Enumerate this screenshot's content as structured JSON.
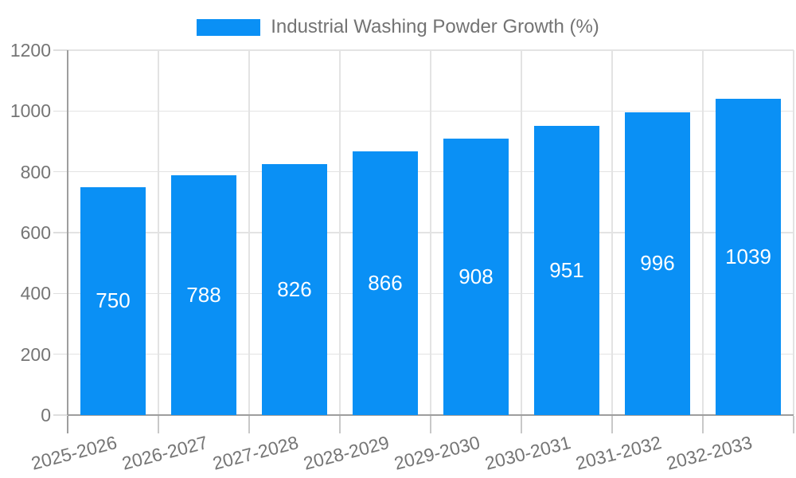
{
  "legend": {
    "label": "Industrial Washing Powder Growth (%)"
  },
  "chart_data": {
    "type": "bar",
    "title": "Industrial Washing Powder Growth (%)",
    "categories": [
      "2025-2026",
      "2026-2027",
      "2027-2028",
      "2028-2029",
      "2029-2030",
      "2030-2031",
      "2031-2032",
      "2032-2033"
    ],
    "values": [
      750,
      788,
      826,
      866,
      908,
      951,
      996,
      1039
    ],
    "bar_labels": [
      "750",
      "788",
      "826",
      "866",
      "908",
      "951",
      "996",
      "1039"
    ],
    "xlabel": "",
    "ylabel": "",
    "ylim": [
      0,
      1200
    ],
    "yticks": [
      0,
      200,
      400,
      600,
      800,
      1000,
      1200
    ],
    "grid": true,
    "legend_position": "top",
    "colors": {
      "bar": "#0a90f5",
      "bar_label_text": "#ffffff",
      "axis_text": "#757575",
      "gridline": "#e3e3e3",
      "axis_line": "#9e9e9e"
    }
  }
}
